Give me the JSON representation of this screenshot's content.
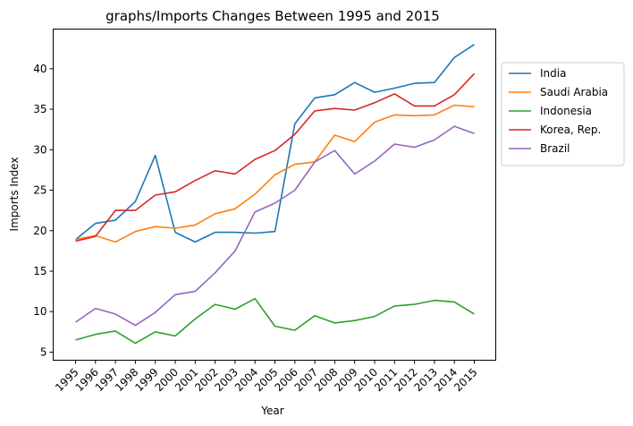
{
  "chart_data": {
    "type": "line",
    "title": "graphs/Imports Changes Between 1995 and 2015",
    "xlabel": "Year",
    "ylabel": "Imports Index",
    "categories": [
      "1995",
      "1996",
      "1997",
      "1998",
      "1999",
      "2000",
      "2001",
      "2002",
      "2003",
      "2004",
      "2005",
      "2006",
      "2007",
      "2008",
      "2009",
      "2010",
      "2011",
      "2012",
      "2013",
      "2014",
      "2015"
    ],
    "ylim": [
      4.0,
      44.9
    ],
    "yticks": [
      5,
      10,
      15,
      20,
      25,
      30,
      35,
      40
    ],
    "grid": false,
    "legend_position": "outside-right",
    "series": [
      {
        "name": "India",
        "color": "#1f77b4",
        "values": [
          18.9,
          20.9,
          21.3,
          23.6,
          29.3,
          19.8,
          18.6,
          19.8,
          19.8,
          19.7,
          19.9,
          33.2,
          36.4,
          36.8,
          38.3,
          37.1,
          37.6,
          38.2,
          38.3,
          41.4,
          43.0
        ]
      },
      {
        "name": "Saudi Arabia",
        "color": "#ff7f0e",
        "values": [
          18.9,
          19.4,
          18.6,
          19.9,
          20.5,
          20.3,
          20.7,
          22.1,
          22.7,
          24.5,
          26.9,
          28.2,
          28.5,
          31.8,
          31.0,
          33.4,
          34.3,
          34.2,
          34.3,
          35.5,
          35.3
        ]
      },
      {
        "name": "Indonesia",
        "color": "#2ca02c",
        "values": [
          6.5,
          7.2,
          7.6,
          6.1,
          7.5,
          7.0,
          9.1,
          10.9,
          10.3,
          11.6,
          8.2,
          7.7,
          9.5,
          8.6,
          8.9,
          9.4,
          10.7,
          10.9,
          11.4,
          11.2,
          9.7
        ]
      },
      {
        "name": "Korea, Rep.",
        "color": "#d62728",
        "values": [
          18.7,
          19.3,
          22.5,
          22.5,
          24.4,
          24.8,
          26.2,
          27.4,
          27.0,
          28.8,
          29.9,
          31.9,
          34.8,
          35.1,
          34.9,
          35.8,
          36.9,
          35.4,
          35.4,
          36.8,
          39.4
        ]
      },
      {
        "name": "Brazil",
        "color": "#9467bd",
        "values": [
          8.7,
          10.4,
          9.7,
          8.3,
          9.9,
          12.1,
          12.5,
          14.8,
          17.5,
          22.3,
          23.4,
          25.0,
          28.5,
          29.9,
          27.0,
          28.6,
          30.7,
          30.3,
          31.2,
          32.9,
          32.0
        ]
      }
    ]
  }
}
